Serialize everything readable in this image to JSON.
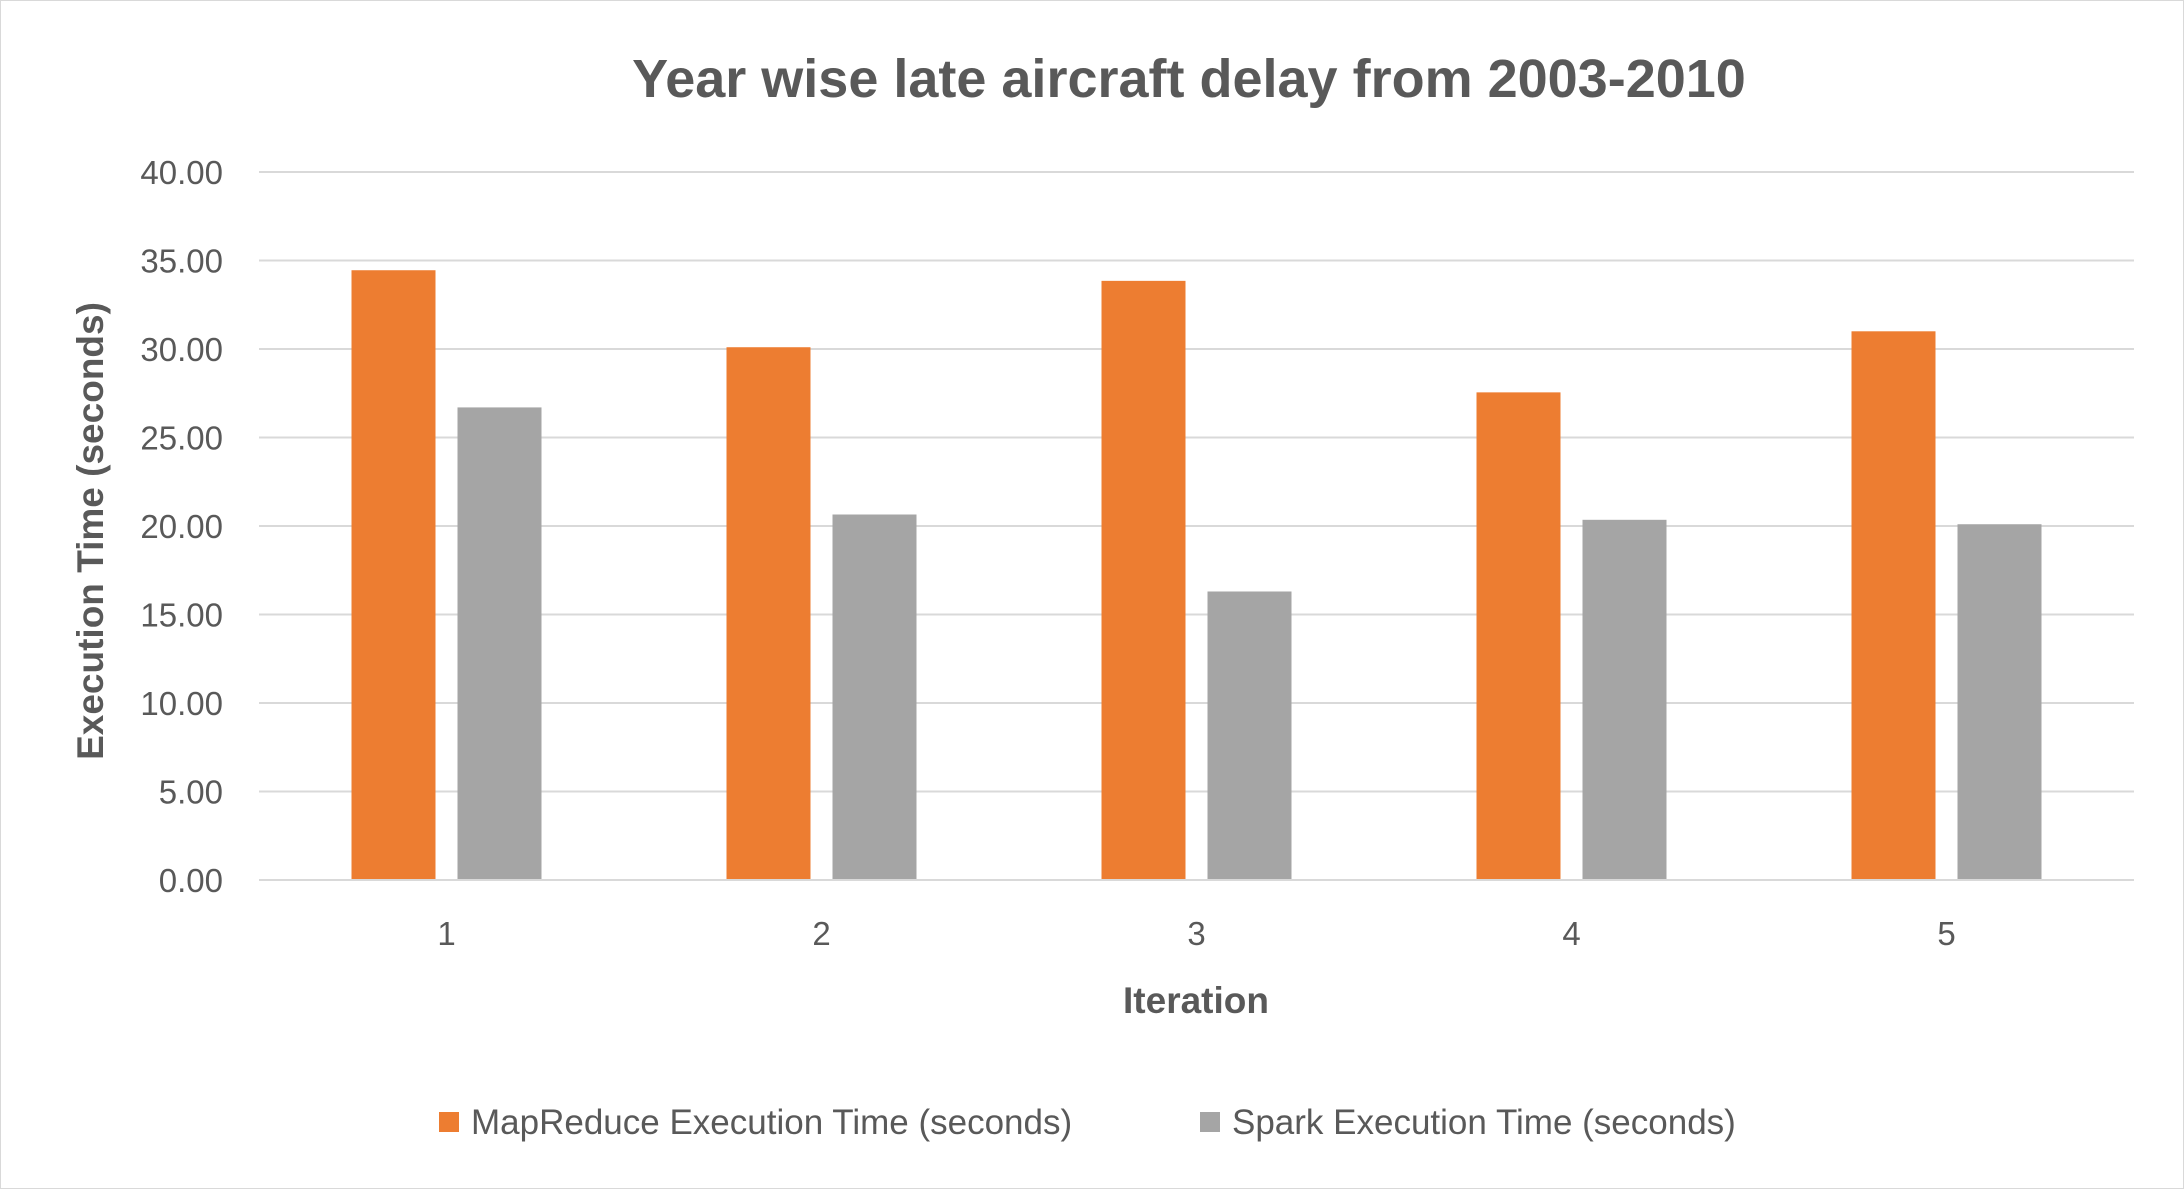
{
  "chart_data": {
    "type": "bar",
    "title": "Year wise late aircraft delay from 2003-2010",
    "xlabel": "Iteration",
    "ylabel": "Execution Time (seconds)",
    "categories": [
      "1",
      "2",
      "3",
      "4",
      "5"
    ],
    "series": [
      {
        "name": "MapReduce Execution Time (seconds)",
        "color": "#ED7D31",
        "values": [
          34.45,
          30.1,
          33.85,
          27.55,
          31.0
        ]
      },
      {
        "name": "Spark Execution Time (seconds)",
        "color": "#A5A5A5",
        "values": [
          26.7,
          20.65,
          16.3,
          20.35,
          20.1
        ]
      }
    ],
    "ylim": [
      0,
      40
    ],
    "yticks": [
      "0.00",
      "5.00",
      "10.00",
      "15.00",
      "20.00",
      "25.00",
      "30.00",
      "35.00",
      "40.00"
    ],
    "grid": true,
    "gridline_color": "#d9d9d9",
    "legend_position": "bottom"
  }
}
